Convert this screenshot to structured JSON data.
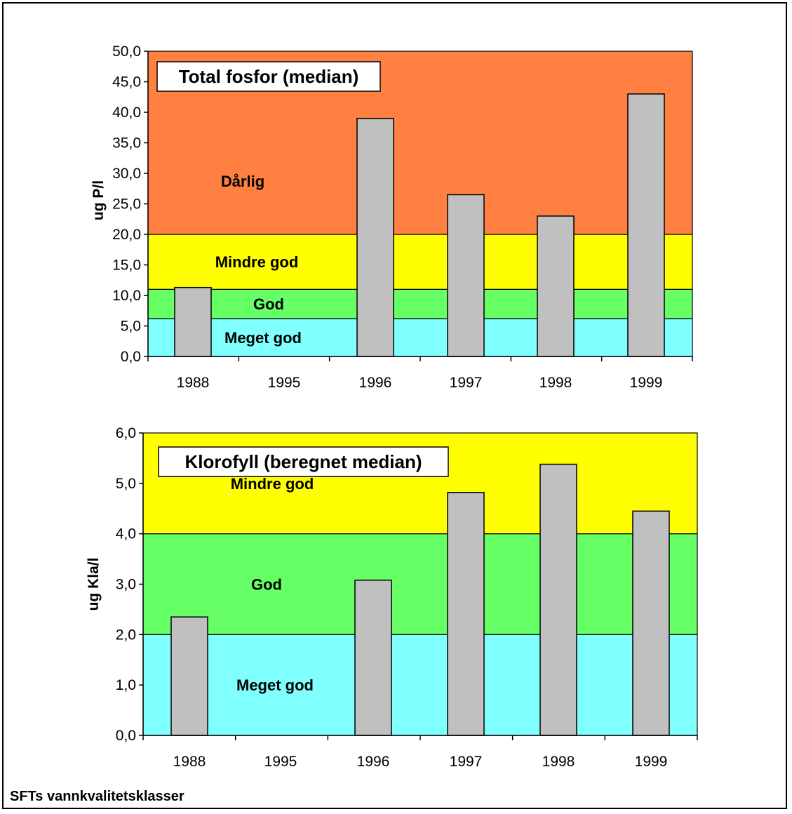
{
  "footer": "SFTs vannkvalitetsklasser",
  "colors": {
    "bar": "#c0c0c0",
    "darlig": "#ff8040",
    "mindre_god": "#ffff00",
    "god": "#66ff66",
    "meget_god": "#80ffff"
  },
  "chart_data": [
    {
      "type": "bar",
      "title": "Total fosfor (median)",
      "xlabel": "",
      "ylabel": "ug P/l",
      "categories": [
        "1988",
        "1995",
        "1996",
        "1997",
        "1998",
        "1999"
      ],
      "values": [
        11.3,
        null,
        39.0,
        26.5,
        23.0,
        43.0
      ],
      "ylim": [
        0,
        50
      ],
      "ytick_step": 5,
      "ytick_labels": [
        "0,0",
        "5,0",
        "10,0",
        "15,0",
        "20,0",
        "25,0",
        "30,0",
        "35,0",
        "40,0",
        "45,0",
        "50,0"
      ],
      "bands": [
        {
          "label": "Meget god",
          "from": 0,
          "to": 6.2,
          "color": "#80ffff"
        },
        {
          "label": "God",
          "from": 6.2,
          "to": 11,
          "color": "#66ff66"
        },
        {
          "label": "Mindre god",
          "from": 11,
          "to": 20,
          "color": "#ffff00"
        },
        {
          "label": "Dårlig",
          "from": 20,
          "to": 50,
          "color": "#ff8040"
        }
      ],
      "grid": false
    },
    {
      "type": "bar",
      "title": "Klorofyll (beregnet median)",
      "xlabel": "",
      "ylabel": "ug Kla/l",
      "categories": [
        "1988",
        "1995",
        "1996",
        "1997",
        "1998",
        "1999"
      ],
      "values": [
        2.35,
        null,
        3.08,
        4.82,
        5.38,
        4.45
      ],
      "ylim": [
        0,
        6
      ],
      "ytick_step": 1,
      "ytick_labels": [
        "0,0",
        "1,0",
        "2,0",
        "3,0",
        "4,0",
        "5,0",
        "6,0"
      ],
      "bands": [
        {
          "label": "Meget god",
          "from": 0,
          "to": 2,
          "color": "#80ffff"
        },
        {
          "label": "God",
          "from": 2,
          "to": 4,
          "color": "#66ff66"
        },
        {
          "label": "Mindre god",
          "from": 4,
          "to": 6,
          "color": "#ffff00"
        }
      ],
      "grid": false
    }
  ]
}
